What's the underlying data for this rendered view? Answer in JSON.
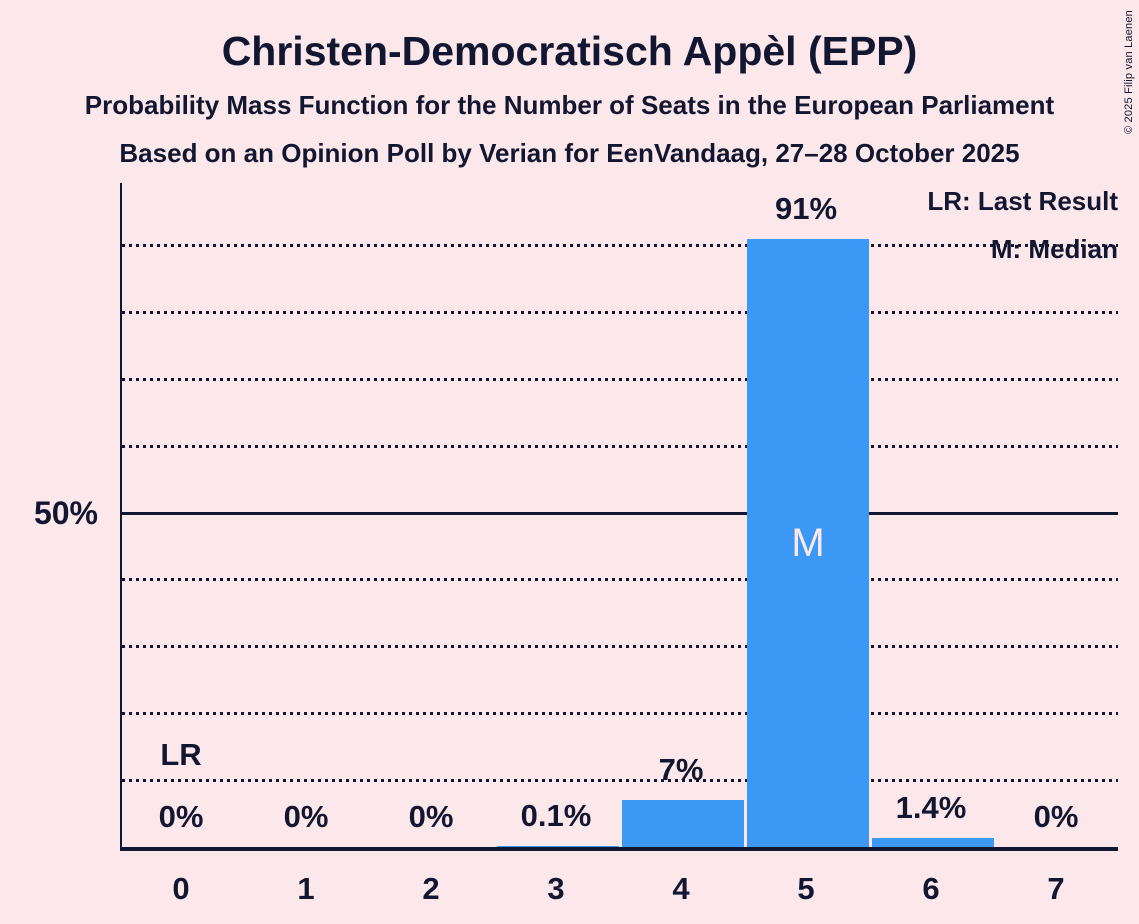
{
  "header": {
    "title": "Christen-Democratisch Appèl (EPP)",
    "subtitle1": "Probability Mass Function for the Number of Seats in the European Parliament",
    "subtitle2": "Based on an Opinion Poll by Verian for EenVandaag, 27–28 October 2025"
  },
  "legend": {
    "last_result": "LR: Last Result",
    "median": "M: Median"
  },
  "copyright": "© 2025 Filip van Laenen",
  "colors": {
    "background": "#fce8ea",
    "bar": "#3b99f5",
    "text": "#121731",
    "median_letter": "#fce8ea"
  },
  "chart_data": {
    "type": "bar",
    "title": "Christen-Democratisch Appèl (EPP)",
    "subtitle": "Probability Mass Function for the Number of Seats in the European Parliament",
    "categories": [
      "0",
      "1",
      "2",
      "3",
      "4",
      "5",
      "6",
      "7"
    ],
    "values": [
      0,
      0,
      0,
      0.1,
      7,
      91,
      1.4,
      0
    ],
    "value_labels": [
      "0%",
      "0%",
      "0%",
      "0.1%",
      "7%",
      "91%",
      "1.4%",
      "0%"
    ],
    "xlabel": "",
    "ylabel": "",
    "ylim": [
      0,
      99.4
    ],
    "y_axis_label_50": "50%",
    "gridline_percents": [
      10,
      20,
      30,
      40,
      50,
      60,
      70,
      80,
      90
    ],
    "solid_gridline_percent": 50,
    "grid": "horizontal-dotted",
    "legend_position": "top-right",
    "annotations": {
      "last_result": {
        "category_index": 0,
        "label": "LR"
      },
      "median": {
        "category_index": 5,
        "label": "M"
      }
    }
  }
}
